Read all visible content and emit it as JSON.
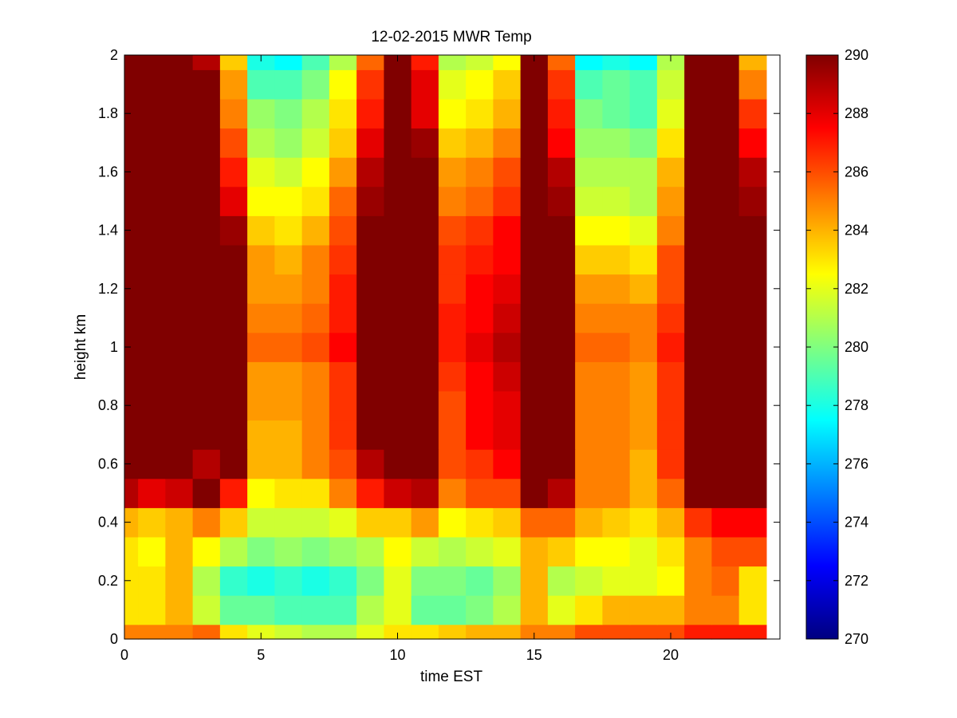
{
  "chart_data": {
    "type": "heatmap",
    "title": "12-02-2015 MWR Temp",
    "xlabel": "time EST",
    "ylabel": "height km",
    "xlim": [
      0,
      24
    ],
    "ylim": [
      0,
      2
    ],
    "x_ticks": [
      "0",
      "5",
      "10",
      "15",
      "20"
    ],
    "y_ticks": [
      "0",
      "0.2",
      "0.4",
      "0.6",
      "0.8",
      "1",
      "1.2",
      "1.4",
      "1.6",
      "1.8",
      "2"
    ],
    "colorbar": {
      "colormap": "jet",
      "range": [
        270,
        290
      ],
      "ticks": [
        "270",
        "272",
        "274",
        "276",
        "278",
        "280",
        "282",
        "284",
        "286",
        "288",
        "290"
      ]
    },
    "x_centers": [
      0,
      1,
      2,
      3,
      4,
      5,
      6,
      7,
      8,
      9,
      10,
      11,
      12,
      13,
      14,
      15,
      16,
      17,
      18,
      19,
      20,
      21,
      22,
      23
    ],
    "y_centers": [
      0,
      0.1,
      0.2,
      0.3,
      0.4,
      0.5,
      0.6,
      0.7,
      0.8,
      0.9,
      1.0,
      1.1,
      1.2,
      1.3,
      1.4,
      1.5,
      1.6,
      1.7,
      1.8,
      1.9,
      2.0
    ],
    "values": [
      [
        285,
        285,
        285,
        285.5,
        283,
        282,
        281.5,
        281,
        281,
        282,
        283,
        283,
        283.5,
        284,
        284,
        285,
        285,
        286,
        286,
        286,
        286,
        287,
        287,
        287
      ],
      [
        283,
        283,
        284,
        281.5,
        279.5,
        279.5,
        279,
        279,
        279,
        281,
        282,
        279.5,
        279.5,
        280,
        281,
        284,
        282,
        283,
        284,
        284,
        284,
        285,
        285,
        283
      ],
      [
        283,
        283,
        284,
        281,
        278.5,
        278,
        278.5,
        278,
        278.5,
        280,
        282,
        280,
        280,
        279.5,
        280.5,
        284,
        281,
        281.5,
        282,
        282,
        282.5,
        285,
        285.5,
        283
      ],
      [
        283,
        282.5,
        284,
        282.5,
        281,
        280,
        280.5,
        280,
        280.5,
        281,
        282.5,
        281.5,
        281,
        281.5,
        282,
        284,
        283.5,
        282.5,
        282.5,
        282,
        283,
        285,
        286,
        286
      ],
      [
        284,
        283.5,
        284,
        285,
        283.5,
        281.5,
        281.5,
        281.5,
        282,
        283.5,
        283.5,
        284.5,
        282.5,
        283,
        283.5,
        285.5,
        285.5,
        284,
        283.5,
        283,
        284,
        286.5,
        287.5,
        287.5
      ],
      [
        289,
        288,
        288.5,
        290,
        287,
        282.5,
        283,
        283,
        285,
        287,
        288.5,
        289,
        285,
        286,
        286,
        290,
        289,
        285,
        285,
        284,
        285.5,
        290,
        290,
        290
      ],
      [
        290,
        290,
        290,
        289,
        290,
        284,
        284,
        285,
        286,
        289,
        290,
        290,
        286,
        286.5,
        287.5,
        290,
        290,
        285,
        285,
        284,
        286.5,
        290,
        290,
        290
      ],
      [
        290,
        290,
        290,
        290,
        290,
        284,
        284,
        285,
        286.5,
        290,
        290,
        290,
        286,
        287.5,
        288,
        290,
        290,
        285,
        285,
        284.5,
        286.5,
        290,
        290,
        290
      ],
      [
        290,
        290,
        290,
        290,
        290,
        284.5,
        284.5,
        285,
        286.5,
        290,
        290,
        290,
        286,
        287.5,
        288,
        290,
        290,
        285,
        285,
        284.5,
        286.5,
        290,
        290,
        290
      ],
      [
        290,
        290,
        290,
        290,
        290,
        284.5,
        284.5,
        285,
        286.5,
        290,
        290,
        290,
        286.5,
        287.5,
        288.5,
        290,
        290,
        285,
        285,
        284.5,
        286.5,
        290,
        290,
        290
      ],
      [
        290,
        290,
        290,
        290,
        290,
        285.5,
        285.5,
        286,
        287.5,
        290,
        290,
        290,
        287,
        288,
        289,
        290,
        290,
        285.5,
        285.5,
        285,
        287,
        290,
        290,
        290
      ],
      [
        290,
        290,
        290,
        290,
        290,
        285,
        285,
        285.5,
        287,
        290,
        290,
        290,
        287,
        287.5,
        288.5,
        290,
        290,
        285,
        285,
        285,
        286.5,
        290,
        290,
        290
      ],
      [
        290,
        290,
        290,
        290,
        290,
        284.5,
        284.5,
        285,
        287,
        290,
        290,
        290,
        286.5,
        287.5,
        288,
        290,
        290,
        284.5,
        284.5,
        284,
        286,
        290,
        290,
        290
      ],
      [
        290,
        290,
        290,
        290,
        290,
        284.5,
        284,
        285,
        286.5,
        290,
        290,
        290,
        286.5,
        287,
        287.5,
        290,
        290,
        283.5,
        283.5,
        283,
        286,
        290,
        290,
        290
      ],
      [
        290,
        290,
        290,
        290,
        289.5,
        283.5,
        283,
        284,
        286,
        290,
        290,
        290,
        286,
        286.5,
        287.5,
        290,
        290,
        282.5,
        282.5,
        282,
        285,
        290,
        290,
        290
      ],
      [
        290,
        290,
        290,
        290,
        288,
        282.5,
        282.5,
        283,
        285.5,
        289.5,
        290,
        290,
        285,
        285.5,
        286.5,
        290,
        289.5,
        281.5,
        281.5,
        281,
        284.5,
        290,
        290,
        289.5
      ],
      [
        290,
        290,
        290,
        290,
        287,
        282,
        281.5,
        282.5,
        284.5,
        289,
        290,
        290,
        284.5,
        285,
        286,
        290,
        289,
        281,
        281,
        281,
        284,
        290,
        290,
        289
      ],
      [
        290,
        290,
        290,
        290,
        286,
        281,
        280.5,
        281.5,
        283.5,
        288,
        290,
        289.5,
        283.5,
        284,
        285,
        290,
        287.5,
        280.5,
        280.5,
        280,
        283,
        290,
        290,
        287.5
      ],
      [
        290,
        290,
        290,
        290,
        285,
        280.5,
        280,
        281,
        283,
        287,
        290,
        288,
        282.5,
        283,
        284,
        290,
        287,
        280,
        279.5,
        279,
        282,
        290,
        290,
        286.5
      ],
      [
        290,
        290,
        290,
        290,
        284.5,
        279,
        279,
        280,
        282.5,
        286.5,
        290,
        288,
        282,
        282.5,
        283.5,
        290,
        286.5,
        279,
        279.5,
        279,
        281.5,
        290,
        290,
        285
      ],
      [
        290,
        290,
        290,
        289,
        283.5,
        278,
        277.5,
        279,
        281,
        285.5,
        290,
        287,
        281,
        281.5,
        282.5,
        290,
        285.5,
        277.5,
        278,
        277.5,
        281,
        290,
        290,
        284
      ]
    ]
  }
}
